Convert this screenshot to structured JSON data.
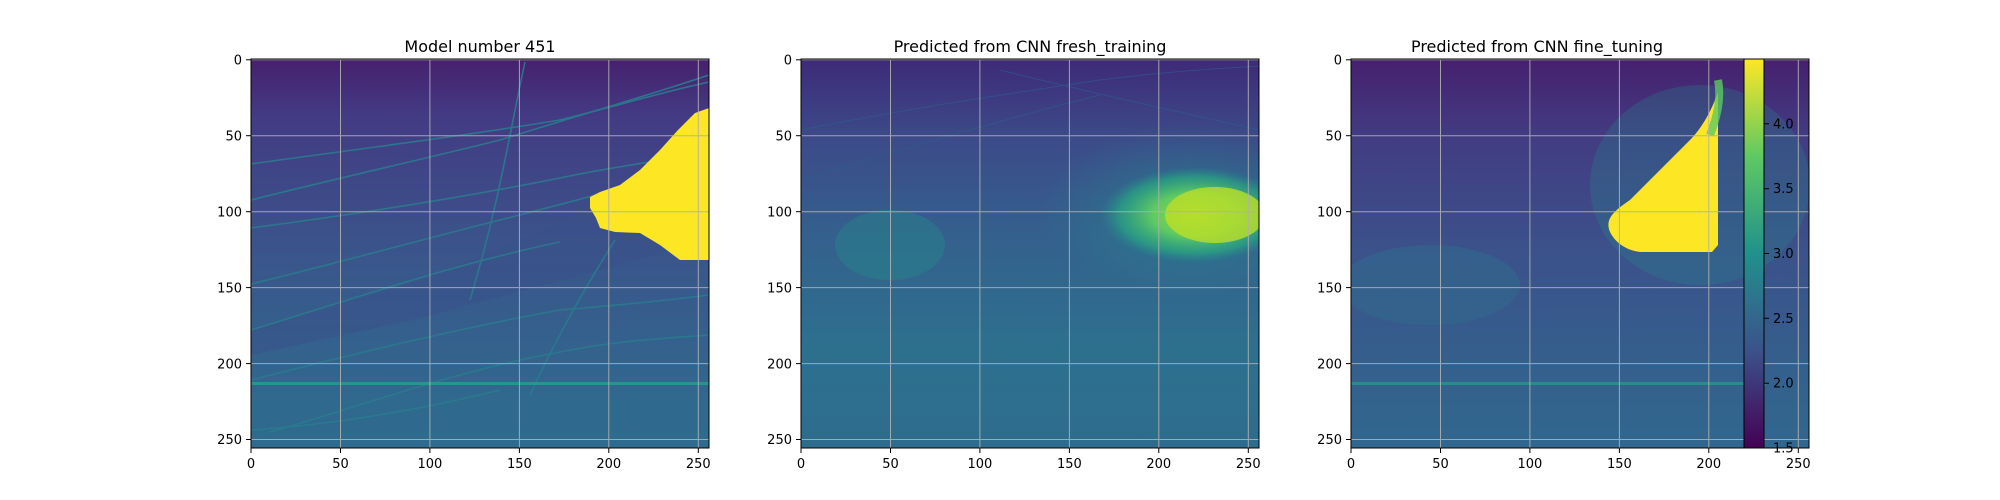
{
  "chart_data": [
    {
      "type": "heatmap",
      "title": "Model number 451",
      "x_ticks": [
        0,
        50,
        100,
        150,
        200,
        250
      ],
      "y_ticks": [
        0,
        50,
        100,
        150,
        200,
        250
      ],
      "xlim": [
        0,
        256
      ],
      "ylim": [
        256,
        0
      ],
      "grid": true,
      "description_values": {
        "background_top": 1.6,
        "background_mid": 2.3,
        "background_bottom": 2.5,
        "anomaly_value": 4.5
      }
    },
    {
      "type": "heatmap",
      "title": "Predicted from CNN fresh_training",
      "x_ticks": [
        0,
        50,
        100,
        150,
        200,
        250
      ],
      "y_ticks": [
        0,
        50,
        100,
        150,
        200,
        250
      ],
      "xlim": [
        0,
        256
      ],
      "ylim": [
        256,
        0
      ],
      "grid": true,
      "description_values": {
        "background_top": 1.8,
        "background_mid": 2.5,
        "background_bottom": 2.6,
        "anomaly_value": 3.9
      }
    },
    {
      "type": "heatmap",
      "title": "Predicted from CNN fine_tuning",
      "x_ticks": [
        0,
        50,
        100,
        150,
        200,
        250
      ],
      "y_ticks": [
        0,
        50,
        100,
        150,
        200,
        250
      ],
      "xlim": [
        0,
        256
      ],
      "ylim": [
        256,
        0
      ],
      "grid": true,
      "description_values": {
        "background_top": 1.7,
        "background_mid": 2.2,
        "background_bottom": 2.5,
        "anomaly_value": 4.5
      }
    }
  ],
  "colorbar": {
    "colormap": "viridis",
    "vmin": 1.5,
    "vmax": 4.5,
    "ticks": [
      "1.5",
      "2.0",
      "2.5",
      "3.0",
      "3.5",
      "4.0"
    ]
  },
  "colors": {
    "low": "#440154",
    "mid_low": "#3b528b",
    "mid": "#21918c",
    "mid_high": "#5ec962",
    "high": "#fde725",
    "grid": "#b0b0b0"
  }
}
